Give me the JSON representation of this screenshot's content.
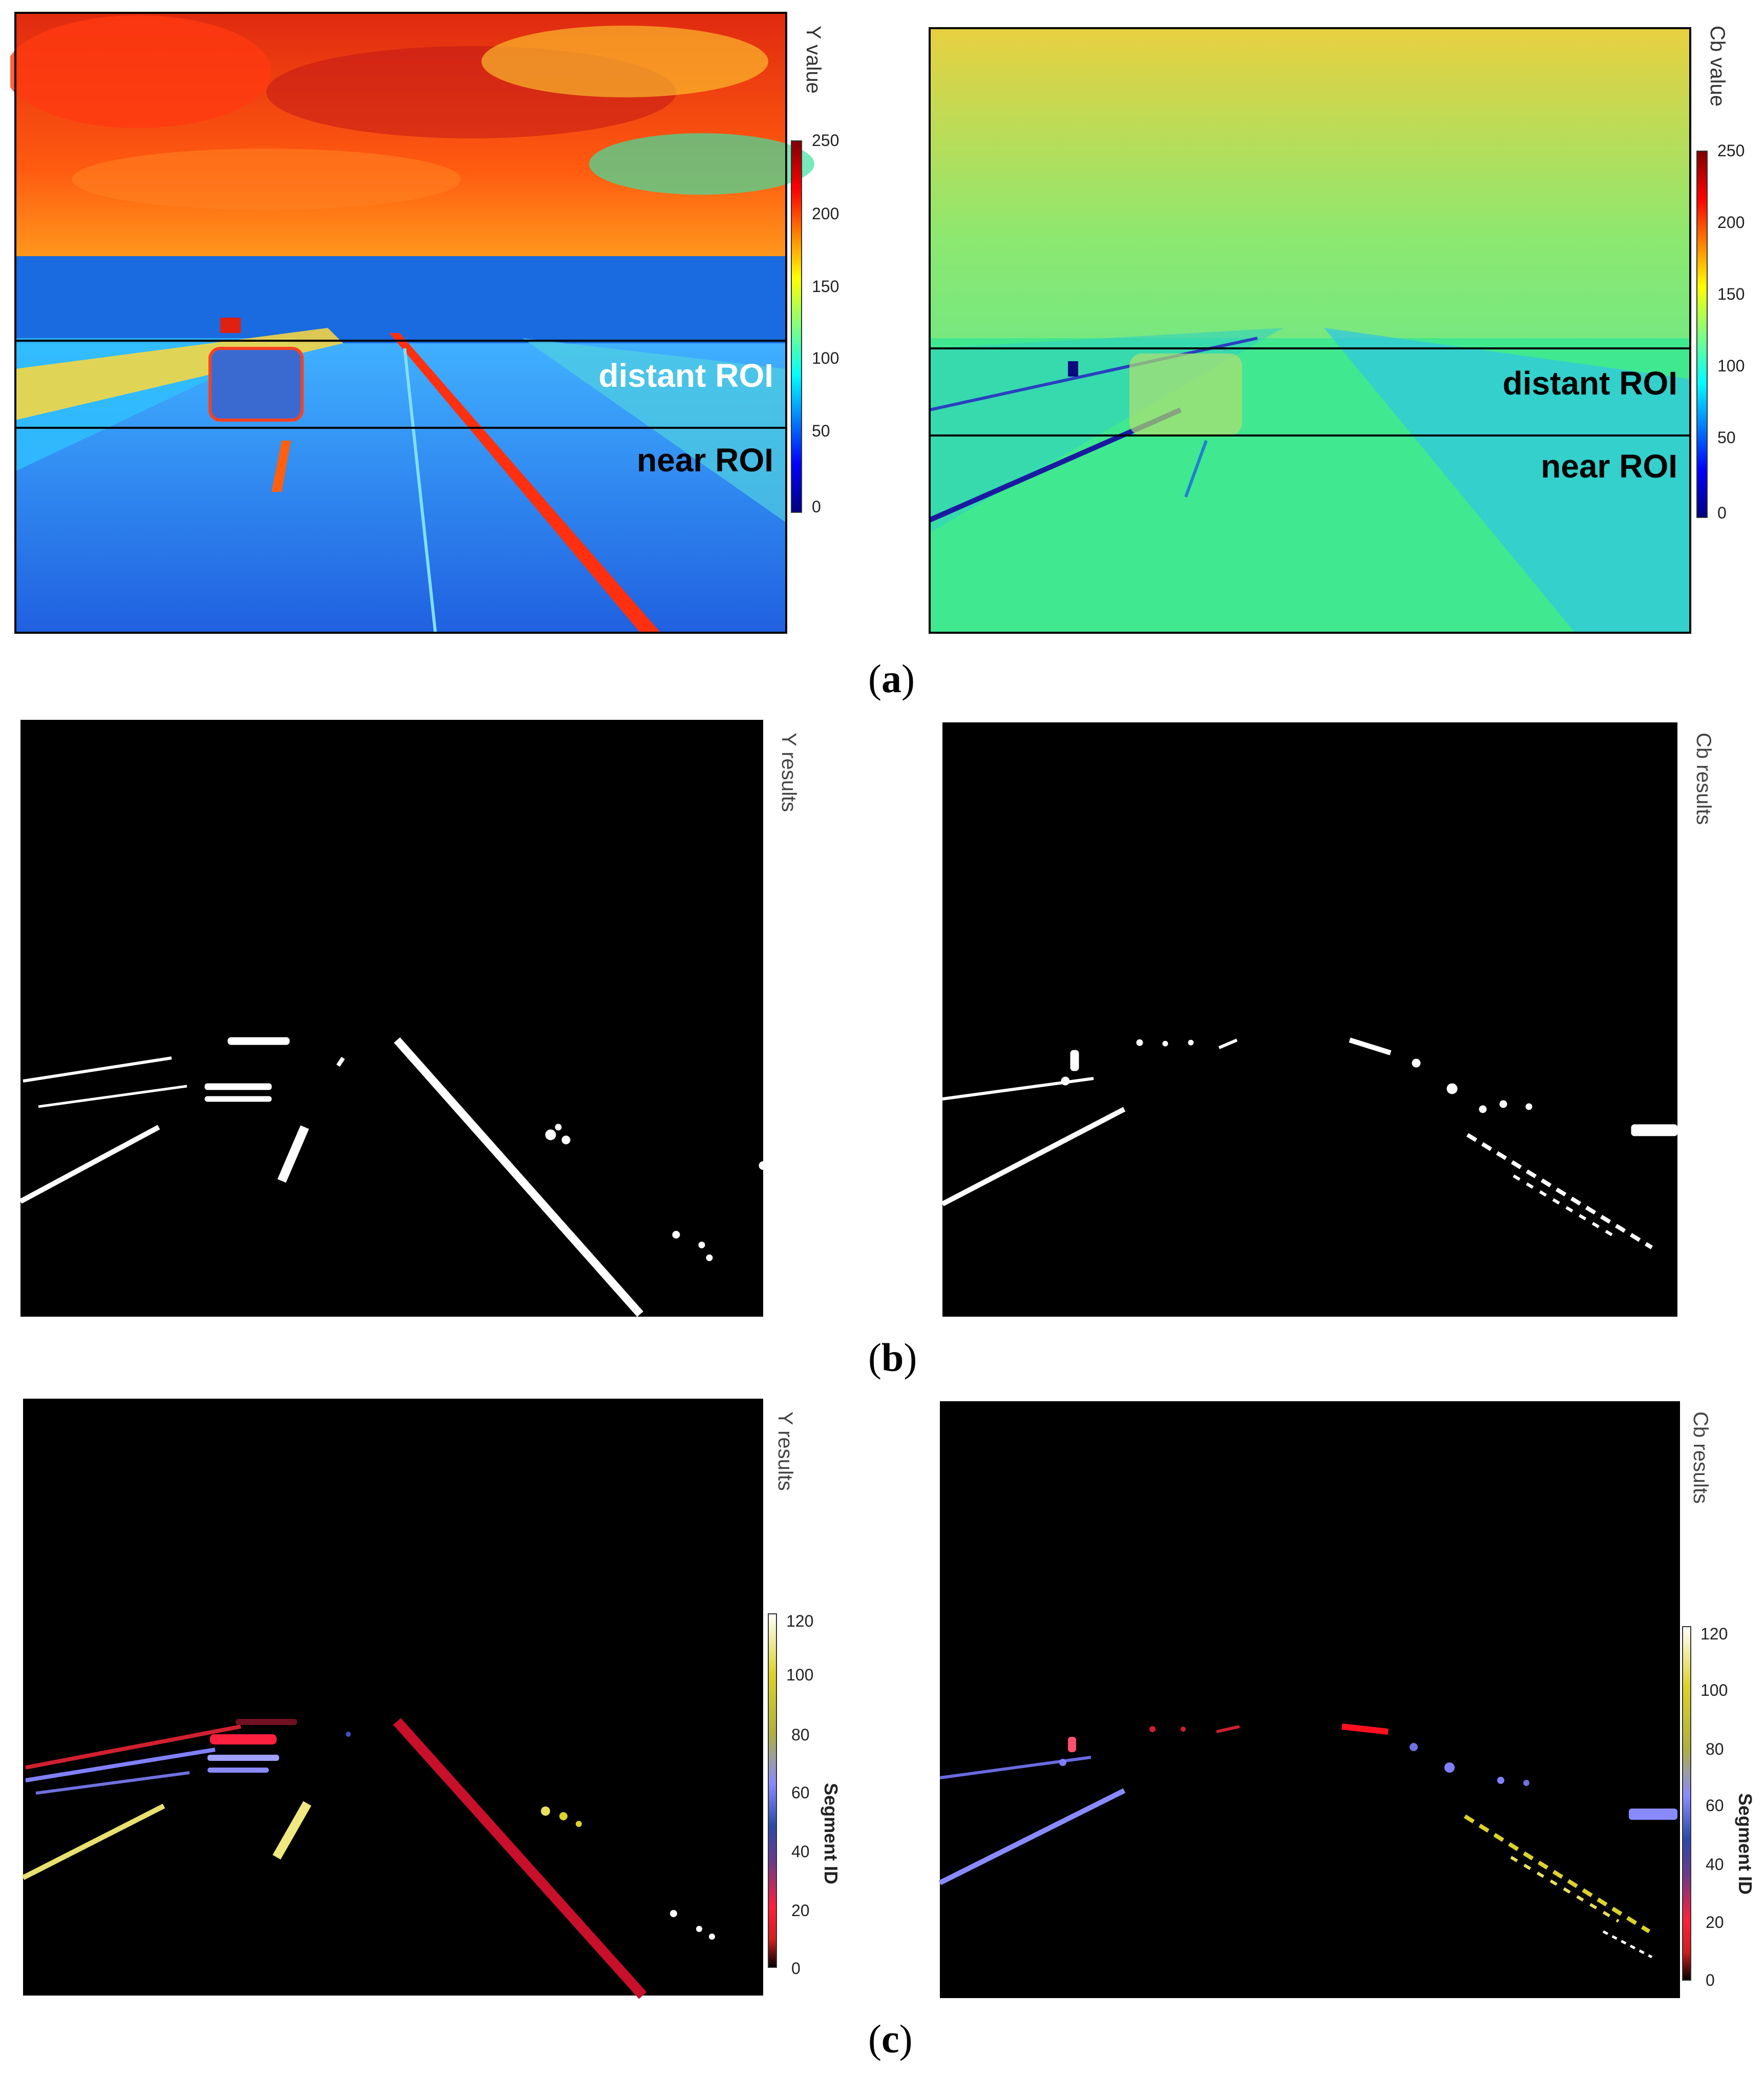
{
  "panels": {
    "a": {
      "caption_letter": "a",
      "left": {
        "colorbar_title": "Y value",
        "colorbar_ticks": [
          "250",
          "200",
          "150",
          "100",
          "50",
          "0"
        ],
        "roi_distant": "distant ROI",
        "roi_near": "near ROI"
      },
      "right": {
        "colorbar_title": "Cb value",
        "colorbar_ticks": [
          "250",
          "200",
          "150",
          "100",
          "50",
          "0"
        ],
        "roi_distant": "distant ROI",
        "roi_near": "near ROI"
      }
    },
    "b": {
      "caption_letter": "b",
      "left": {
        "title": "Y results"
      },
      "right": {
        "title": "Cb results"
      }
    },
    "c": {
      "caption_letter": "c",
      "left": {
        "title": "Y results",
        "colorbar_title": "Segment ID",
        "colorbar_ticks": [
          "120",
          "100",
          "80",
          "60",
          "40",
          "20",
          "0"
        ]
      },
      "right": {
        "title": "Cb results",
        "colorbar_title": "Segment ID",
        "colorbar_ticks": [
          "120",
          "100",
          "80",
          "60",
          "40",
          "20",
          "0"
        ]
      }
    }
  },
  "colors": {
    "jet_stops": [
      "#00007f",
      "#0000ff",
      "#00ffff",
      "#7fff7f",
      "#ffff00",
      "#ff0000",
      "#7f0000"
    ],
    "segment_stops": [
      "#000000",
      "#d21e1e",
      "#ff1f3a",
      "#6a3a8c",
      "#2a4aa8",
      "#8a8aff",
      "#b0b040",
      "#dcd22a",
      "#ffffff"
    ]
  }
}
